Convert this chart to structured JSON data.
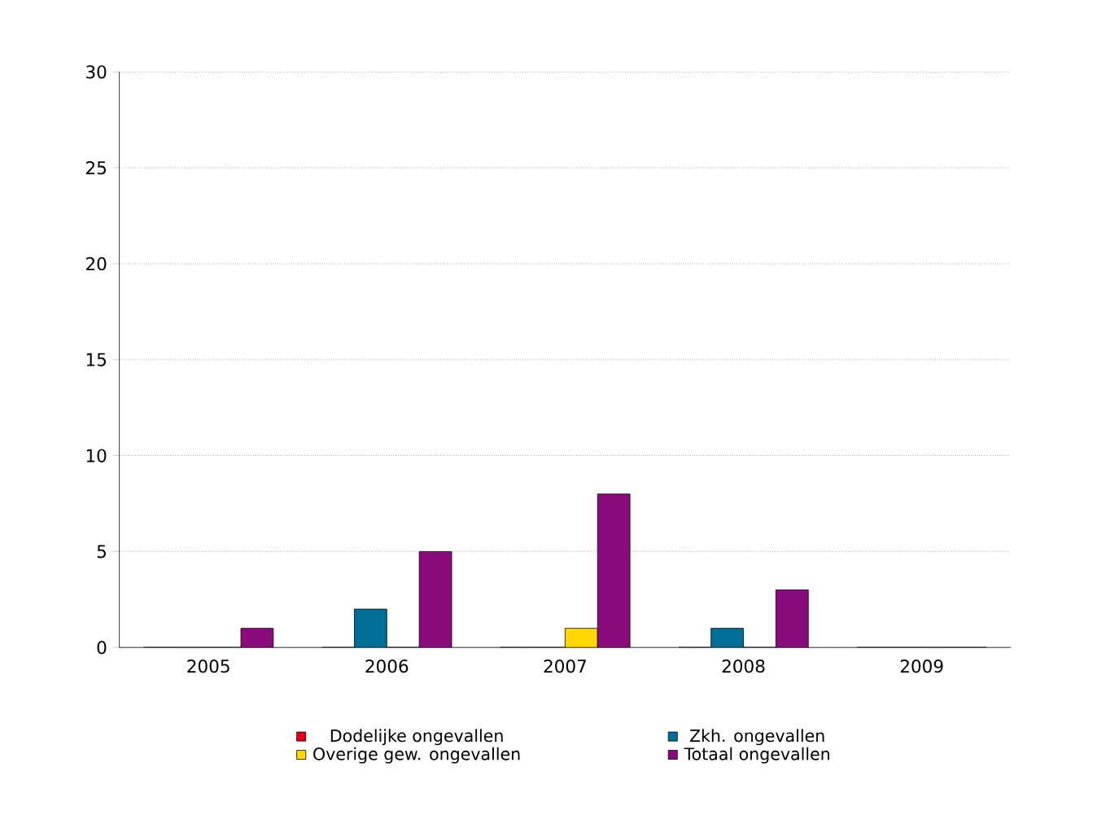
{
  "chart_data": {
    "type": "bar",
    "categories": [
      "2005",
      "2006",
      "2007",
      "2008",
      "2009"
    ],
    "series": [
      {
        "name": "Dodelijke ongevallen",
        "color": "#e0001b",
        "values": [
          0,
          0,
          0,
          0,
          0
        ]
      },
      {
        "name": "Zkh. ongevallen",
        "color": "#006e96",
        "values": [
          0,
          2,
          0,
          1,
          0
        ]
      },
      {
        "name": "Overige gew. ongevallen",
        "color": "#ffd700",
        "values": [
          0,
          0,
          1,
          0,
          0
        ]
      },
      {
        "name": "Totaal ongevallen",
        "color": "#8b0a7c",
        "values": [
          1,
          5,
          8,
          3,
          0
        ]
      }
    ],
    "ylim": [
      0,
      30
    ],
    "yticks": [
      0,
      5,
      10,
      15,
      20,
      25,
      30
    ],
    "grid": "y",
    "legend": "bottom"
  }
}
